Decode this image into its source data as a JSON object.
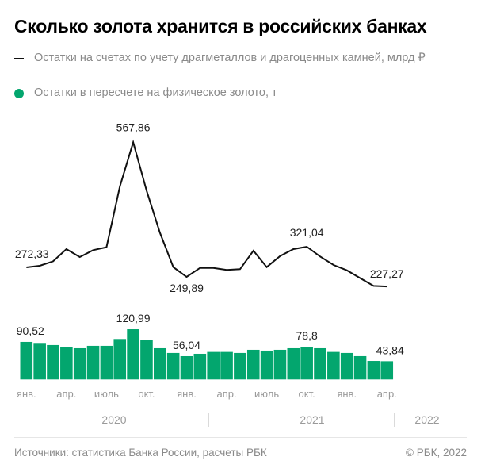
{
  "title": "Сколько золота хранится в российских банках",
  "legend": [
    {
      "label": "Остатки на счетах по учету драгметаллов и драгоценных камней, млрд ₽",
      "marker": "line",
      "color": "#111111"
    },
    {
      "label": "Остатки в пересчете на физическое золото, т",
      "marker": "dot",
      "color": "#03a66e"
    }
  ],
  "chart_data": {
    "type": "line+bar",
    "title": "Сколько золота хранится в российских банках",
    "grid": false,
    "x_ticks": [
      {
        "index": 0,
        "label": "янв."
      },
      {
        "index": 3,
        "label": "апр."
      },
      {
        "index": 6,
        "label": "июль"
      },
      {
        "index": 9,
        "label": "окт."
      },
      {
        "index": 12,
        "label": "янв."
      },
      {
        "index": 15,
        "label": "апр."
      },
      {
        "index": 18,
        "label": "июль"
      },
      {
        "index": 21,
        "label": "окт."
      },
      {
        "index": 24,
        "label": "янв."
      },
      {
        "index": 27,
        "label": "апр."
      }
    ],
    "years": [
      "2020",
      "2021",
      "2022"
    ],
    "series": [
      {
        "name": "Остатки на счетах по учету драгметаллов и драгоценных камней, млрд ₽",
        "type": "line",
        "color": "#111111",
        "values": [
          272.33,
          276.1,
          286.7,
          315.5,
          296.7,
          313.0,
          319.9,
          463.5,
          567.86,
          454.2,
          354.2,
          273.0,
          249.89,
          271.1,
          271.1,
          266.1,
          268.0,
          311.7,
          273.0,
          299.2,
          315.5,
          321.04,
          298.0,
          278.0,
          265.5,
          246.8,
          228.6,
          227.27
        ],
        "annotations": [
          {
            "index": 0,
            "text": "272,33"
          },
          {
            "index": 8,
            "text": "567,86"
          },
          {
            "index": 12,
            "text": "249,89"
          },
          {
            "index": 21,
            "text": "321,04"
          },
          {
            "index": 27,
            "text": "227,27"
          }
        ]
      },
      {
        "name": "Остатки в пересчете на физическое золото, т",
        "type": "bar",
        "color": "#03a66e",
        "values": [
          90.52,
          88.0,
          82.9,
          77.1,
          75.2,
          81.0,
          81.0,
          97.5,
          120.99,
          95.6,
          75.2,
          63.8,
          56.04,
          61.8,
          66.3,
          66.3,
          63.8,
          71.4,
          69.5,
          71.4,
          75.2,
          78.8,
          75.2,
          66.3,
          63.8,
          56.1,
          44.5,
          43.84
        ],
        "annotations": [
          {
            "index": 0,
            "text": "90,52"
          },
          {
            "index": 8,
            "text": "120,99"
          },
          {
            "index": 12,
            "text": "56,04"
          },
          {
            "index": 21,
            "text": "78,8"
          },
          {
            "index": 27,
            "text": "43,84"
          }
        ]
      }
    ]
  },
  "footer": {
    "source": "Источники: статистика Банка России, расчеты РБК",
    "copyright": "© РБК, 2022"
  }
}
